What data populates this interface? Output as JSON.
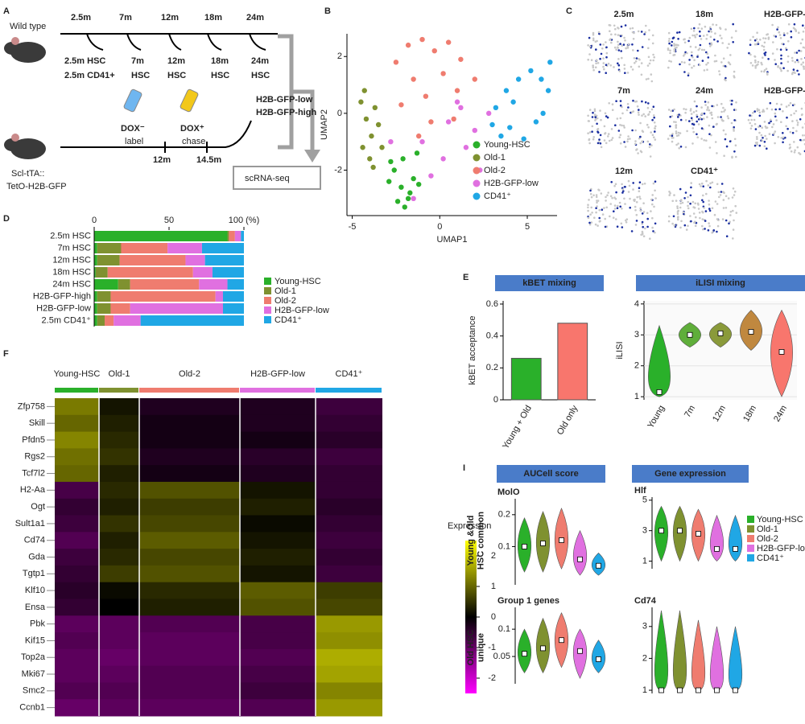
{
  "panel_labels": [
    "A",
    "B",
    "C",
    "D",
    "E",
    "F",
    "I"
  ],
  "panel_a": {
    "labels": [
      {
        "text": "Wild type",
        "color": "#111111"
      },
      {
        "text": "2.5m",
        "color": "#111111"
      },
      {
        "text": "7m",
        "color": "#111111"
      },
      {
        "text": "12m",
        "color": "#111111"
      },
      {
        "text": "18m",
        "color": "#111111"
      },
      {
        "text": "24m",
        "color": "#111111"
      },
      {
        "text": "2.5m HSC",
        "color": "#2ab02a"
      },
      {
        "text": "2.5m CD41+",
        "color": "#29b6e6"
      },
      {
        "text": "7m",
        "color": "#7f9130"
      },
      {
        "text": "HSC",
        "color": "#7f9130"
      },
      {
        "text": "12m",
        "color": "#a0a43c"
      },
      {
        "text": "HSC",
        "color": "#a0a43c"
      },
      {
        "text": "18m",
        "color": "#c98a4e"
      },
      {
        "text": "HSC",
        "color": "#c98a4e"
      },
      {
        "text": "24m",
        "color": "#ef7c6f"
      },
      {
        "text": "HSC",
        "color": "#ef7c6f"
      },
      {
        "text": "DOX⁻",
        "color": "#3a6fc4"
      },
      {
        "text": "label",
        "color": "#111111"
      },
      {
        "text": "DOX⁺",
        "color": "#e6c319"
      },
      {
        "text": "chase",
        "color": "#111111"
      },
      {
        "text": "H2B-GFP-low",
        "color": "#d44fd4"
      },
      {
        "text": "H2B-GFP-high",
        "color": "#7b79d8"
      },
      {
        "text": "12m",
        "color": "#111111"
      },
      {
        "text": "14.5m",
        "color": "#111111"
      },
      {
        "text": "Scl-tTA::",
        "color": "#111111"
      },
      {
        "text": "TetO-H2B-GFP",
        "color": "#111111"
      },
      {
        "text": "scRNA-seq",
        "color": "#111111"
      }
    ]
  },
  "panel_c": {
    "titles": [
      "2.5m",
      "18m",
      "H2B-GFP-",
      "7m",
      "24m",
      "H2B-GFP-",
      "12m",
      "CD41⁺"
    ]
  },
  "panel_i": {
    "headers": [
      "AUCell score",
      "Gene expression"
    ],
    "rows": [
      "Young &Old\nHSC common",
      "Old HSC\nunique"
    ],
    "legend": [
      {
        "name": "Young-HSC",
        "color": "#2ab02a"
      },
      {
        "name": "Old-1",
        "color": "#7f9130"
      },
      {
        "name": "Old-2",
        "color": "#ef7c6f"
      },
      {
        "name": "H2B-GFP-low",
        "color": "#e070e0"
      },
      {
        "name": "CD41⁺",
        "color": "#20a7e5"
      }
    ]
  },
  "chart_data": [
    {
      "type": "scatter",
      "xlabel": "UMAP1",
      "ylabel": "UMAP2",
      "xlim": [
        -5.3,
        6.7
      ],
      "ylim": [
        -3.6,
        2.8
      ],
      "xticks": [
        -5,
        0,
        5
      ],
      "yticks": [
        -2,
        0,
        2
      ],
      "legend": "lower right",
      "series": [
        {
          "name": "Young-HSC",
          "color": "#2ab02a",
          "x": [
            -2.6,
            -2.2,
            -1.8,
            -1.5,
            -2.0,
            -2.8,
            -1.3,
            -2.4,
            -1.7,
            -2.1,
            -1.2,
            -2.9
          ],
          "y": [
            -2.0,
            -2.6,
            -3.0,
            -2.3,
            -3.3,
            -1.7,
            -1.4,
            -3.1,
            -2.8,
            -1.6,
            -2.5,
            -2.4
          ]
        },
        {
          "name": "Old-1",
          "color": "#7f9130",
          "x": [
            -4.5,
            -4.2,
            -3.9,
            -4.4,
            -3.7,
            -4.0,
            -3.5,
            -4.3,
            -3.8,
            -3.3
          ],
          "y": [
            0.4,
            -0.2,
            -0.8,
            -1.2,
            0.2,
            -1.6,
            -0.4,
            0.8,
            -1.9,
            -1.2
          ]
        },
        {
          "name": "Old-2",
          "color": "#ef7c6f",
          "x": [
            -2.5,
            -1.8,
            -1.0,
            -0.3,
            0.5,
            1.2,
            -1.5,
            -0.8,
            0.2,
            1.0,
            -2.2,
            -0.5,
            0.8,
            2.0,
            -1.2
          ],
          "y": [
            1.8,
            2.4,
            2.6,
            2.2,
            2.5,
            1.9,
            1.2,
            0.6,
            1.4,
            0.8,
            0.3,
            -0.3,
            -0.2,
            1.2,
            -0.8
          ]
        },
        {
          "name": "H2B-GFP-low",
          "color": "#e070e0",
          "x": [
            0.5,
            1.2,
            2.0,
            2.8,
            1.5,
            0.2,
            -0.5,
            -1.5,
            2.3,
            1.0,
            -2.8,
            -1.0
          ],
          "y": [
            -0.3,
            0.2,
            -0.6,
            0.0,
            -1.2,
            -1.6,
            -2.2,
            -3.0,
            -2.0,
            0.4,
            -1.0,
            -1.0
          ]
        },
        {
          "name": "CD41⁺",
          "color": "#20a7e5",
          "x": [
            3.2,
            3.8,
            4.5,
            5.2,
            5.8,
            6.2,
            4.0,
            4.8,
            5.5,
            3.5,
            4.2,
            5.9,
            6.3,
            3.0
          ],
          "y": [
            0.2,
            0.8,
            1.2,
            1.5,
            1.2,
            0.8,
            -0.5,
            -0.9,
            -0.3,
            -0.8,
            0.4,
            0.0,
            1.8,
            -0.4
          ]
        }
      ]
    },
    {
      "type": "hstack",
      "categories": [
        "2.5m HSC",
        "7m HSC",
        "12m HSC",
        "18m HSC",
        "24m HSC",
        "H2B-GFP-high",
        "H2B-GFP-low",
        "2.5m CD41⁺"
      ],
      "xlim": [
        0,
        100
      ],
      "xticks": [
        0,
        50,
        {
          "value": 100,
          "label": "100 (%)"
        }
      ],
      "series": [
        {
          "name": "Young-HSC",
          "color": "#2ab02a",
          "values": [
            89,
            2,
            2,
            1,
            16,
            2,
            2,
            2
          ]
        },
        {
          "name": "Old-1",
          "color": "#7f9130",
          "values": [
            1,
            16,
            15,
            8,
            8,
            9,
            9,
            5
          ]
        },
        {
          "name": "Old-2",
          "color": "#ef7c6f",
          "values": [
            4,
            31,
            44,
            57,
            46,
            70,
            13,
            6
          ]
        },
        {
          "name": "H2B-GFP-low",
          "color": "#e070e0",
          "values": [
            4,
            23,
            13,
            13,
            19,
            5,
            62,
            18
          ]
        },
        {
          "name": "CD41⁺",
          "color": "#20a7e5",
          "values": [
            2,
            28,
            26,
            21,
            11,
            14,
            14,
            69
          ]
        }
      ]
    },
    {
      "type": "bar",
      "header": "kBET mixing",
      "ylabel": "kBET acceptance",
      "categories": [
        "Young + Old",
        "Old only"
      ],
      "values": [
        0.26,
        0.48
      ],
      "colors": [
        "#2ab02a",
        "#f8766d"
      ],
      "ylim": [
        0,
        0.62
      ],
      "yticks": [
        0,
        0.2,
        0.4,
        0.6
      ]
    },
    {
      "type": "violin",
      "header": "iLISI mixing",
      "ylabel": "iLISI",
      "grid": true,
      "categories": [
        "Young",
        "7m",
        "12m",
        "18m",
        "24m"
      ],
      "colors": [
        "#2ab02a",
        "#5fae3a",
        "#8a9a3a",
        "#c0883f",
        "#f8766d"
      ],
      "min": [
        1,
        2.6,
        2.6,
        2.5,
        1
      ],
      "max": [
        3.3,
        3.4,
        3.4,
        3.8,
        3.8
      ],
      "median": [
        1.15,
        3,
        3.05,
        3.1,
        2.45
      ],
      "ylim": [
        0.9,
        4.1
      ],
      "yticks": [
        1,
        2,
        3,
        4
      ]
    },
    {
      "type": "heatmap",
      "columns": [
        {
          "name": "Young-HSC",
          "color": "#2ab02a"
        },
        {
          "name": "Old-1",
          "color": "#7f9130"
        },
        {
          "name": "Old-2",
          "color": "#ef7c6f"
        },
        {
          "name": "H2B-GFP-low",
          "color": "#e070e0"
        },
        {
          "name": "CD41⁺",
          "color": "#20a7e5"
        }
      ],
      "rows": [
        {
          "gene": "Zfp758",
          "color": "#2ab02a",
          "values": [
            1.2,
            0.2,
            -0.3,
            -0.3,
            -0.6
          ]
        },
        {
          "gene": "Skill",
          "color": "#2ab02a",
          "values": [
            1.0,
            0.3,
            -0.2,
            -0.3,
            -0.5
          ]
        },
        {
          "gene": "Pfdn5",
          "color": "#2ab02a",
          "values": [
            1.3,
            0.4,
            -0.2,
            -0.2,
            -0.4
          ]
        },
        {
          "gene": "Rgs2",
          "color": "#2ab02a",
          "values": [
            1.1,
            0.5,
            -0.3,
            -0.4,
            -0.6
          ]
        },
        {
          "gene": "Tcf7l2",
          "color": "#2ab02a",
          "values": [
            1.0,
            0.3,
            -0.2,
            -0.3,
            -0.5
          ]
        },
        {
          "gene": "H2-Aa",
          "color": "#ef7c6f",
          "values": [
            -0.7,
            0.4,
            0.8,
            0.2,
            -0.5
          ]
        },
        {
          "gene": "Ogt",
          "color": "#ef7c6f",
          "values": [
            -0.5,
            0.3,
            0.6,
            0.3,
            -0.4
          ]
        },
        {
          "gene": "Sult1a1",
          "color": "#ef7c6f",
          "values": [
            -0.6,
            0.5,
            0.7,
            0.1,
            -0.5
          ]
        },
        {
          "gene": "Cd74",
          "color": "#ef7c6f",
          "values": [
            -0.8,
            0.3,
            0.9,
            0.2,
            -0.6
          ]
        },
        {
          "gene": "Gda",
          "color": "#ef7c6f",
          "values": [
            -0.6,
            0.4,
            0.7,
            0.3,
            -0.5
          ]
        },
        {
          "gene": "Tgtp1",
          "color": "#ef7c6f",
          "values": [
            -0.5,
            0.6,
            0.8,
            0.2,
            -0.6
          ]
        },
        {
          "gene": "Klf10",
          "color": "#d44fd4",
          "values": [
            -0.4,
            0.1,
            0.4,
            0.9,
            0.6
          ]
        },
        {
          "gene": "Ensa",
          "color": "#d44fd4",
          "values": [
            -0.5,
            0.0,
            0.3,
            0.8,
            0.7
          ]
        },
        {
          "gene": "Pbk",
          "color": "#29a7e0",
          "values": [
            -0.9,
            -0.9,
            -0.8,
            -0.7,
            1.5
          ]
        },
        {
          "gene": "Kif15",
          "color": "#29a7e0",
          "values": [
            -0.8,
            -0.9,
            -0.9,
            -0.7,
            1.4
          ]
        },
        {
          "gene": "Top2a",
          "color": "#29a7e0",
          "values": [
            -0.9,
            -1.0,
            -0.9,
            -0.8,
            1.7
          ]
        },
        {
          "gene": "Mki67",
          "color": "#29a7e0",
          "values": [
            -0.9,
            -0.9,
            -0.8,
            -0.7,
            1.6
          ]
        },
        {
          "gene": "Smc2",
          "color": "#29a7e0",
          "values": [
            -0.8,
            -0.8,
            -0.8,
            -0.6,
            1.3
          ]
        },
        {
          "gene": "Ccnb1",
          "color": "#29a7e0",
          "values": [
            -1.0,
            -0.9,
            -0.9,
            -0.8,
            1.5
          ]
        }
      ],
      "colorbar": {
        "label": "Expression",
        "lim": [
          -2.5,
          2.5
        ],
        "ticks": [
          -2,
          -1,
          0,
          1,
          2
        ]
      }
    },
    {
      "type": "violin",
      "title": "MolO",
      "min": [
        0.02,
        0.02,
        0.03,
        0.01,
        0.01
      ],
      "max": [
        0.19,
        0.21,
        0.22,
        0.15,
        0.08
      ],
      "median": [
        0.1,
        0.11,
        0.12,
        0.06,
        0.04
      ],
      "ylim": [
        -0.02,
        0.25
      ],
      "yticks": [
        0.1,
        0.2
      ]
    },
    {
      "type": "violin",
      "title": "Hlf",
      "min": [
        1,
        1,
        1,
        1,
        1
      ],
      "max": [
        4.6,
        4.6,
        4.4,
        4.0,
        4.0
      ],
      "median": [
        3.0,
        3.0,
        2.8,
        1.8,
        1.8
      ],
      "ylim": [
        0.5,
        5.2
      ],
      "yticks": [
        1,
        3,
        5
      ]
    },
    {
      "type": "violin",
      "title": "Group 1 genes",
      "min": [
        0.02,
        0.02,
        0.03,
        0.01,
        0.02
      ],
      "max": [
        0.1,
        0.12,
        0.13,
        0.1,
        0.08
      ],
      "median": [
        0.055,
        0.065,
        0.08,
        0.06,
        0.045
      ],
      "ylim": [
        0,
        0.14
      ],
      "yticks": [
        0.05,
        0.1
      ]
    },
    {
      "type": "violin",
      "title": "Cd74",
      "min": [
        1,
        1,
        1,
        1,
        1
      ],
      "max": [
        3.5,
        3.5,
        3.2,
        3.0,
        3.0
      ],
      "median": [
        1.0,
        1.0,
        1.0,
        1.0,
        1.0
      ],
      "ylim": [
        0.9,
        3.6
      ],
      "yticks": [
        1,
        2,
        3
      ]
    }
  ]
}
